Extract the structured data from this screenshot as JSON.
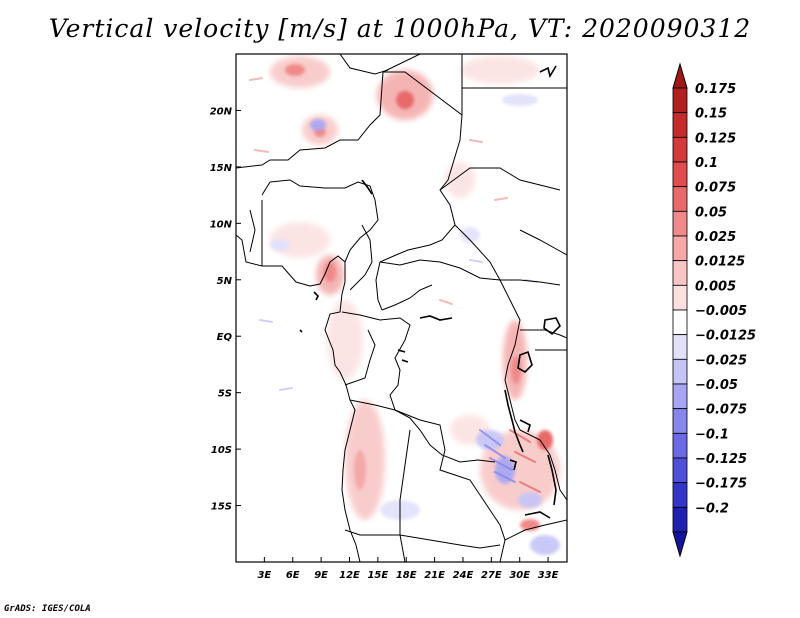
{
  "title": "Vertical velocity [m/s] at 1000hPa, VT: 2020090312",
  "credit": "GrADS: IGES/COLA",
  "map": {
    "lon_range": [
      0,
      35
    ],
    "lat_range": [
      -20,
      25
    ],
    "x_ticks": [
      {
        "lon": 3,
        "label": "3E"
      },
      {
        "lon": 6,
        "label": "6E"
      },
      {
        "lon": 9,
        "label": "9E"
      },
      {
        "lon": 12,
        "label": "12E"
      },
      {
        "lon": 15,
        "label": "15E"
      },
      {
        "lon": 18,
        "label": "18E"
      },
      {
        "lon": 21,
        "label": "21E"
      },
      {
        "lon": 24,
        "label": "24E"
      },
      {
        "lon": 27,
        "label": "27E"
      },
      {
        "lon": 30,
        "label": "30E"
      },
      {
        "lon": 33,
        "label": "33E"
      }
    ],
    "y_ticks": [
      {
        "lat": 20,
        "label": "20N"
      },
      {
        "lat": 15,
        "label": "15N"
      },
      {
        "lat": 10,
        "label": "10N"
      },
      {
        "lat": 5,
        "label": "5N"
      },
      {
        "lat": 0,
        "label": "EQ"
      },
      {
        "lat": -5,
        "label": "5S"
      },
      {
        "lat": -10,
        "label": "10S"
      },
      {
        "lat": -15,
        "label": "15S"
      }
    ]
  },
  "colorbar": {
    "levels": [
      {
        "label": "0.175",
        "color": "#b0201f"
      },
      {
        "label": "0.15",
        "color": "#c52b2b"
      },
      {
        "label": "0.125",
        "color": "#d33b3b"
      },
      {
        "label": "0.1",
        "color": "#e04e4e"
      },
      {
        "label": "0.075",
        "color": "#e86a6a"
      },
      {
        "label": "0.05",
        "color": "#ef8a8a"
      },
      {
        "label": "0.025",
        "color": "#f4a8a8"
      },
      {
        "label": "0.0125",
        "color": "#f8c4c4"
      },
      {
        "label": "0.005",
        "color": "#fbe0e0"
      },
      {
        "label": "−0.005",
        "color": "#ffffff"
      },
      {
        "label": "−0.0125",
        "color": "#e1e1fb"
      },
      {
        "label": "−0.025",
        "color": "#c4c4f7"
      },
      {
        "label": "−0.05",
        "color": "#a6a6f2"
      },
      {
        "label": "−0.075",
        "color": "#8686ec"
      },
      {
        "label": "−0.1",
        "color": "#6a6ae4"
      },
      {
        "label": "−0.125",
        "color": "#4f4fd8"
      },
      {
        "label": "−0.175",
        "color": "#3434c8"
      },
      {
        "label": "−0.2",
        "color": "#2020b0"
      }
    ],
    "top_color": "#a01818",
    "bottom_color": "#1414a0"
  }
}
